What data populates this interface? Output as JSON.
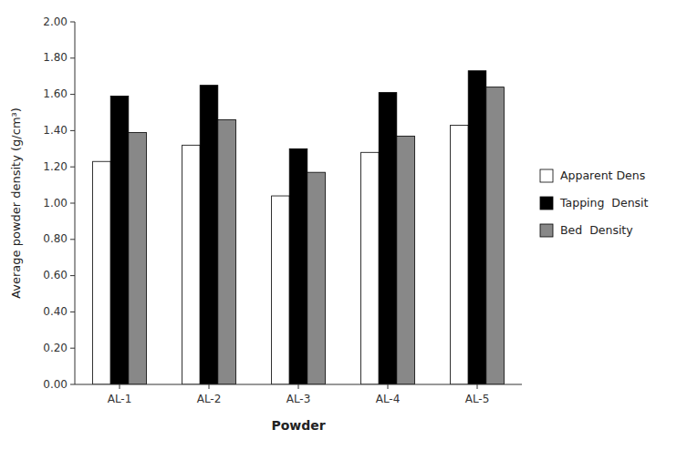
{
  "chart_data": {
    "type": "bar",
    "categories": [
      "AL-1",
      "AL-2",
      "AL-3",
      "AL-4",
      "AL-5"
    ],
    "series": [
      {
        "name": "Apparent Dens",
        "color": "white",
        "values": [
          1.23,
          1.32,
          1.04,
          1.28,
          1.43
        ]
      },
      {
        "name": "Tapping  Densit",
        "color": "black",
        "values": [
          1.59,
          1.65,
          1.3,
          1.61,
          1.73
        ]
      },
      {
        "name": "Bed  Density",
        "color": "#888888",
        "values": [
          1.39,
          1.46,
          1.17,
          1.37,
          1.64
        ]
      }
    ],
    "x_label": "Powder",
    "y_label": "Average powder density (g/cm³)",
    "ylim": [
      0.0,
      2.0
    ],
    "yticks": [
      {
        "value": 0.0,
        "label": "0.00"
      },
      {
        "value": 0.2,
        "label": "0.20"
      },
      {
        "value": 0.4,
        "label": "0.40"
      },
      {
        "value": 0.6,
        "label": "0.60"
      },
      {
        "value": 0.8,
        "label": "0.80"
      },
      {
        "value": 1.0,
        "label": "1.00"
      },
      {
        "value": 1.2,
        "label": "1.20"
      },
      {
        "value": 1.4,
        "label": "1.40"
      },
      {
        "value": 1.6,
        "label": "1.60"
      },
      {
        "value": 1.8,
        "label": "1.80"
      },
      {
        "value": 2.0,
        "label": "2.00"
      }
    ],
    "grid": false,
    "legend": "right"
  }
}
